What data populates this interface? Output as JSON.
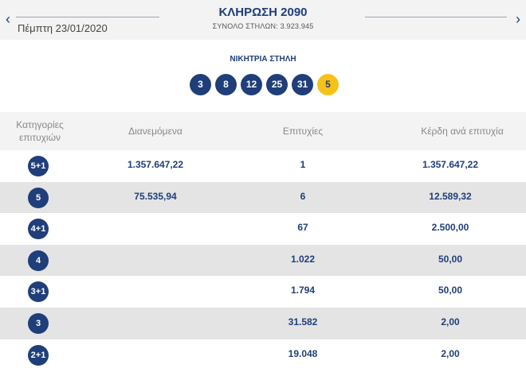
{
  "header": {
    "prev_icon": "chevron-left-icon",
    "next_icon": "chevron-right-icon",
    "date": "Πέμπτη 23/01/2020",
    "title": "ΚΛΗΡΩΣΗ 2090",
    "subtitle": "ΣΥΝΟΛΟ ΣΤΗΛΩΝ: 3.923.945"
  },
  "winning": {
    "label": "ΝΙΚΗΤΡΙΑ ΣΤΗΛΗ",
    "numbers": [
      "3",
      "8",
      "12",
      "25",
      "31"
    ],
    "bonus": "5",
    "colors": {
      "main_ball": "#1f3e7a",
      "bonus_ball": "#f6c21a"
    }
  },
  "table": {
    "headers": {
      "category_line1": "Κατηγορίες",
      "category_line2": "επιτυχιών",
      "distributed": "Διανεμόμενα",
      "winners": "Επιτυχίες",
      "prize": "Κέρδη ανά επιτυχία"
    },
    "rows": [
      {
        "category": "5+1",
        "distributed": "1.357.647,22",
        "winners": "1",
        "prize": "1.357.647,22"
      },
      {
        "category": "5",
        "distributed": "75.535,94",
        "winners": "6",
        "prize": "12.589,32"
      },
      {
        "category": "4+1",
        "distributed": "",
        "winners": "67",
        "prize": "2.500,00"
      },
      {
        "category": "4",
        "distributed": "",
        "winners": "1.022",
        "prize": "50,00"
      },
      {
        "category": "3+1",
        "distributed": "",
        "winners": "1.794",
        "prize": "50,00"
      },
      {
        "category": "3",
        "distributed": "",
        "winners": "31.582",
        "prize": "2,00"
      },
      {
        "category": "2+1",
        "distributed": "",
        "winners": "19.048",
        "prize": "2,00"
      }
    ]
  }
}
